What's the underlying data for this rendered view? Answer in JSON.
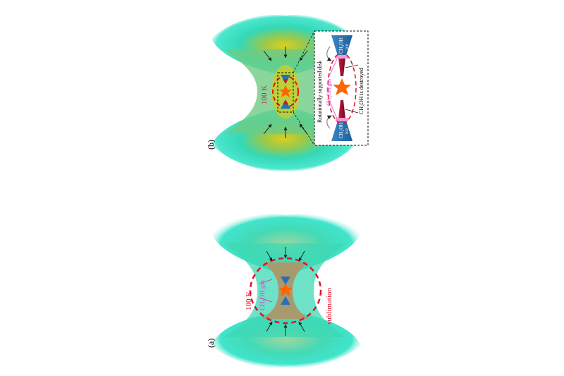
{
  "panels": {
    "a": {
      "label": "(a)",
      "temperature": "100 K",
      "gas_label": "CH3OH gas",
      "gas_main": "CH",
      "gas_sub": "3",
      "gas_rest": "OH gas",
      "process": "sublimation"
    },
    "b": {
      "label": "(b)",
      "temperature": "100 K",
      "inset": {
        "disk_label": "Rotationally supported disk",
        "gas_label": "CH3OH gas",
        "gas_main": "CH",
        "gas_sub": "3",
        "gas_rest": "OH gas",
        "ice_label": "CH3OH ice",
        "ice_main": "CH",
        "ice_sub": "3",
        "ice_rest": "OH",
        "ice_word": "ice",
        "destroyed_label": "CH3OH is destroyed",
        "destroyed_main": "CH",
        "destroyed_sub": "3",
        "destroyed_rest": "OH is destroyed"
      }
    }
  },
  "colors": {
    "envelope_inner": "#8fd2b4",
    "envelope_outer": "#22dcc0",
    "hot_region": "#a8a070",
    "disk_zone": "#b6cc3c",
    "boundary_dashed": "#e0112a",
    "star": "#ff6600",
    "gas_label": "#e040d0",
    "temperature_label": "#e0112a",
    "ice": "#2a6fb3",
    "disk_red": "#9e1030",
    "arrow": "#222222"
  }
}
